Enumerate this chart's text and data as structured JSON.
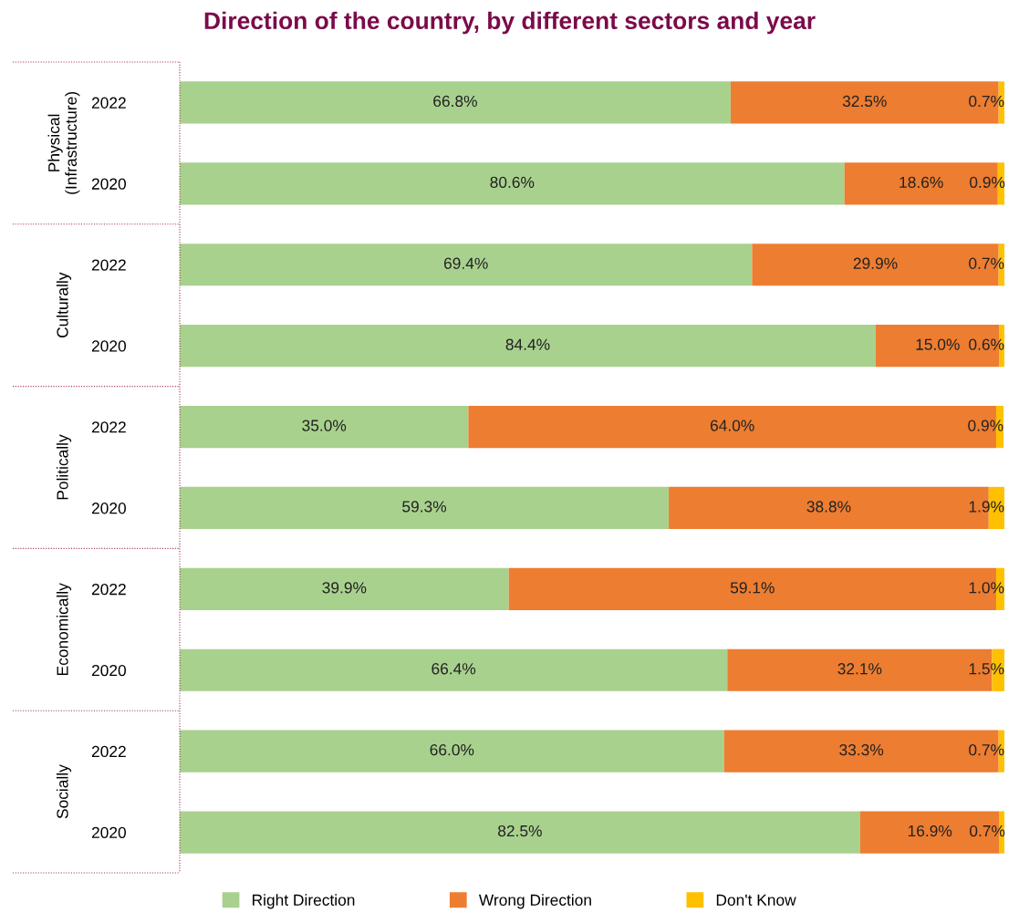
{
  "chart_data": {
    "type": "bar",
    "orientation": "horizontal",
    "stacked": true,
    "title": "Direction of the country, by different sectors and year",
    "categories": [
      "2022",
      "2020",
      "2022",
      "2020",
      "2022",
      "2020",
      "2022",
      "2020",
      "2022",
      "2020"
    ],
    "annotations": [
      "Physical\n(Infrastructure)",
      "Culturally",
      "Politically",
      "Economically",
      "Socially"
    ],
    "series": [
      {
        "name": "Right Direction",
        "color": "#a9d18e",
        "values": [
          66.8,
          80.6,
          69.4,
          84.4,
          35.0,
          59.3,
          39.9,
          66.4,
          66.0,
          82.5
        ],
        "value_labels": [
          "66.8%",
          "80.6%",
          "69.4%",
          "84.4%",
          "35.0%",
          "59.3%",
          "39.9%",
          "66.4%",
          "66.0%",
          "82.5%"
        ]
      },
      {
        "name": "Wrong Direction",
        "color": "#ed7d31",
        "values": [
          32.5,
          18.6,
          29.9,
          15.0,
          64.0,
          38.8,
          59.1,
          32.1,
          33.3,
          16.9
        ],
        "value_labels": [
          "32.5%",
          "18.6%",
          "29.9%",
          "15.0%",
          "64.0%",
          "38.8%",
          "59.1%",
          "32.1%",
          "33.3%",
          "16.9%"
        ]
      },
      {
        "name": "Don't Know",
        "color": "#ffc000",
        "values": [
          0.7,
          0.9,
          0.7,
          0.6,
          0.9,
          1.9,
          1.0,
          1.5,
          0.7,
          0.7
        ],
        "value_labels": [
          "0.7%",
          "0.9%",
          "0.7%",
          "0.6%",
          "0.9%",
          "1.9%",
          "1.0%",
          "1.5%",
          "0.7%",
          "0.7%"
        ]
      }
    ],
    "xlim": [
      0,
      100
    ],
    "tick_labels": "y",
    "grid": false,
    "legend": "bottom"
  }
}
